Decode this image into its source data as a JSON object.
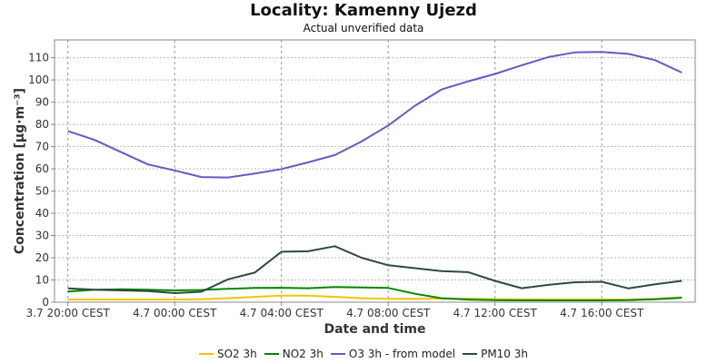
{
  "chart_data": {
    "type": "line",
    "title": "Locality: Kamenny Ujezd",
    "subtitle": "Actual unverified data",
    "xlabel": "Date and time",
    "ylabel": "Concentration [µg·m⁻³]",
    "ylim": [
      0,
      118
    ],
    "yticks": [
      0,
      10,
      20,
      30,
      40,
      50,
      60,
      70,
      80,
      90,
      100,
      110
    ],
    "xlim_hours": [
      -0.5,
      23.5
    ],
    "xticks": [
      {
        "hour": 0,
        "label": "3.7 20:00 CEST"
      },
      {
        "hour": 4,
        "label": "4.7 00:00 CEST"
      },
      {
        "hour": 8,
        "label": "4.7 04:00 CEST"
      },
      {
        "hour": 12,
        "label": "4.7 08:00 CEST"
      },
      {
        "hour": 16,
        "label": "4.7 12:00 CEST"
      },
      {
        "hour": 20,
        "label": "4.7 16:00 CEST"
      }
    ],
    "grid": true,
    "legend_position": "bottom",
    "x": [
      0,
      1,
      2,
      3,
      4,
      5,
      6,
      7,
      8,
      9,
      10,
      11,
      12,
      13,
      14,
      15,
      16,
      17,
      18,
      19,
      20,
      21,
      22,
      23
    ],
    "series": [
      {
        "name": "SO2 3h",
        "color": "#f5c400",
        "values": [
          1.2,
          1.2,
          1.2,
          1.2,
          1.2,
          1.3,
          1.8,
          2.4,
          3.0,
          3.0,
          2.4,
          1.8,
          1.5,
          1.5,
          1.6,
          1.6,
          1.3,
          1.3,
          1.2,
          1.2,
          1.2,
          1.2,
          1.5,
          2.2
        ]
      },
      {
        "name": "NO2 3h",
        "color": "#008800",
        "values": [
          4.8,
          5.6,
          5.8,
          5.6,
          5.3,
          5.5,
          6.0,
          6.4,
          6.5,
          6.3,
          6.8,
          6.6,
          6.4,
          3.8,
          1.8,
          1.2,
          0.9,
          0.8,
          0.8,
          0.8,
          0.8,
          0.9,
          1.3,
          2.0
        ]
      },
      {
        "name": "O3 3h - from model",
        "color": "#6a56c8",
        "values": [
          77,
          73,
          67.5,
          62,
          59.3,
          56.3,
          56.1,
          57.9,
          59.9,
          62.9,
          66.2,
          72.3,
          79.5,
          88.4,
          95.7,
          99.4,
          102.7,
          106.6,
          110.3,
          112.4,
          112.6,
          111.7,
          108.9,
          103.3
        ]
      },
      {
        "name": "PM10 3h",
        "color": "#2e4a40",
        "values": [
          6.2,
          5.6,
          5.3,
          5.0,
          4.1,
          4.7,
          10.3,
          13.3,
          22.7,
          22.9,
          25.2,
          20.0,
          16.6,
          15.3,
          14.0,
          13.5,
          9.6,
          6.3,
          7.8,
          9.0,
          9.2,
          6.2,
          8.1,
          9.6
        ]
      }
    ]
  }
}
